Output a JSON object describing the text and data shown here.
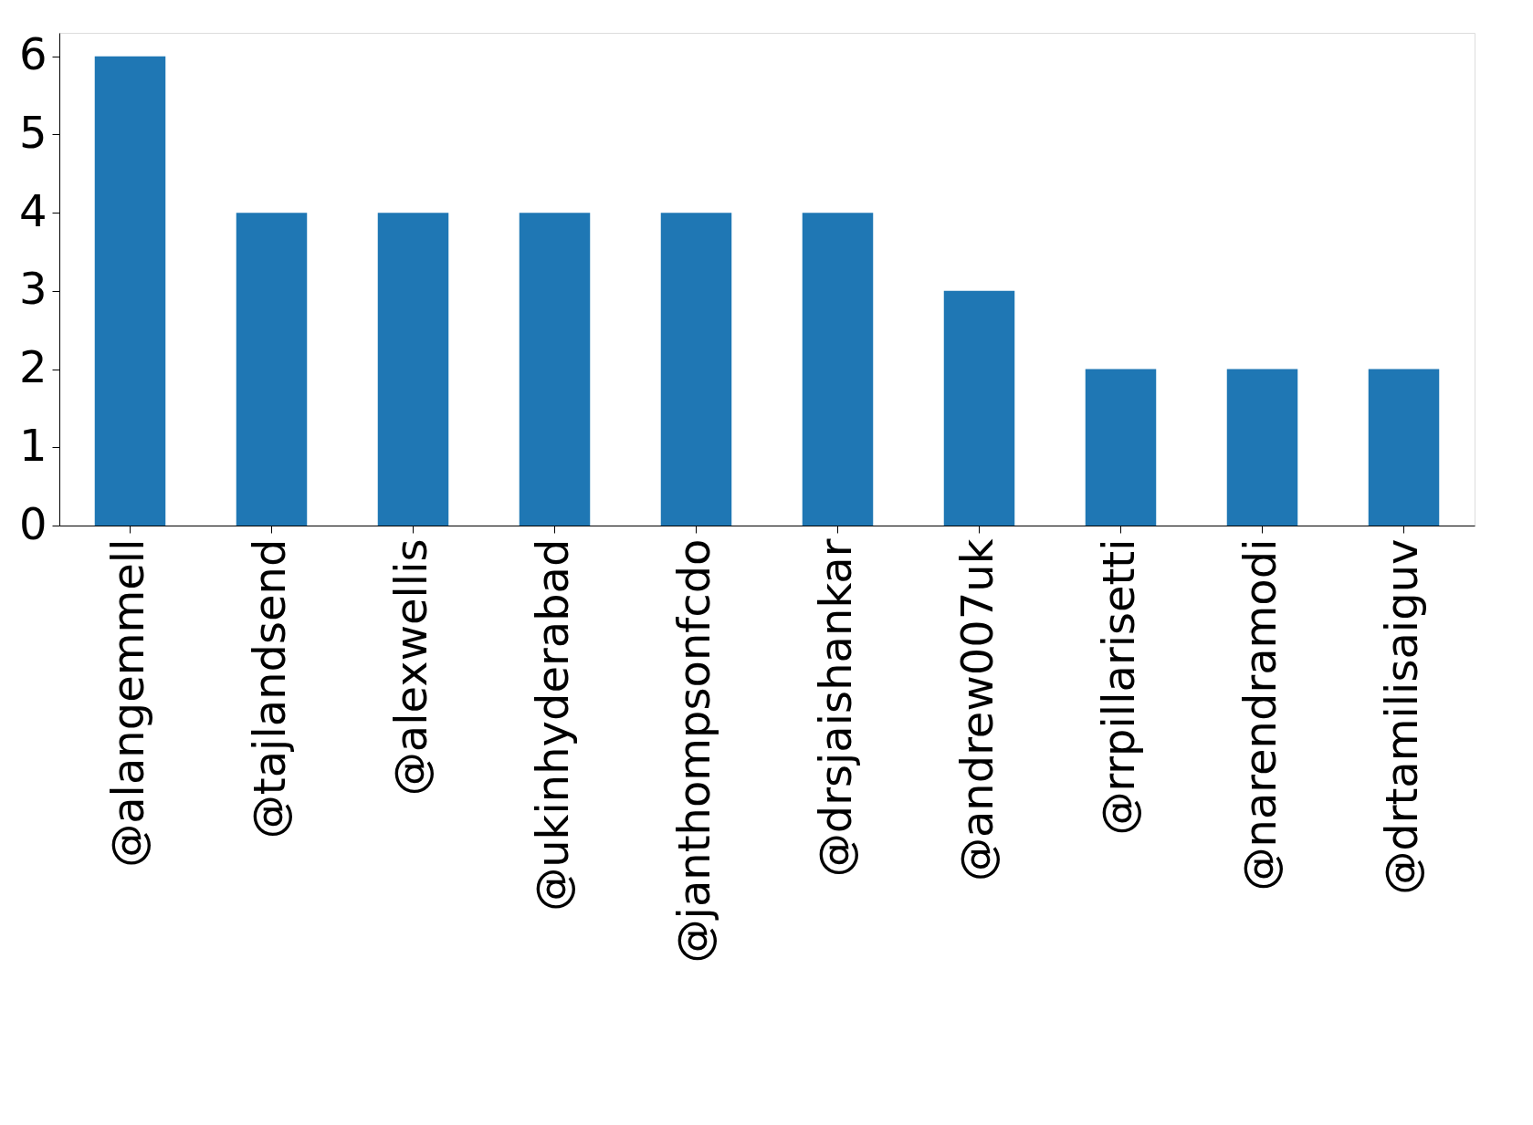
{
  "chart_data": {
    "type": "bar",
    "categories": [
      "@alangemmell",
      "@tajlandsend",
      "@alexwellis",
      "@ukinhyderabad",
      "@janthompsonfcdo",
      "@drsjaishankar",
      "@andrew007uk",
      "@rrpillarisetti",
      "@narendramodi",
      "@drtamilisaiguv"
    ],
    "values": [
      6,
      4,
      4,
      4,
      4,
      4,
      3,
      2,
      2,
      2
    ],
    "color": "#1f77b4",
    "ylim": [
      0,
      6.3
    ],
    "yticks": [
      0,
      1,
      2,
      3,
      4,
      5,
      6
    ],
    "grid": false
  }
}
